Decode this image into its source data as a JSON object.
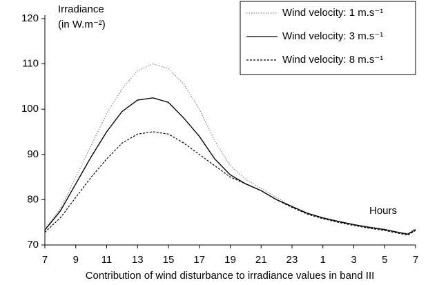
{
  "chart_data": {
    "type": "line",
    "ylabel": [
      "Irradiance",
      "(in W.m⁻²)"
    ],
    "xlabel": "Contribution of wind disturbance to irradiance values in band III",
    "annotation": "Hours",
    "xlim": [
      7,
      31
    ],
    "ylim": [
      70,
      120
    ],
    "yticks": [
      70,
      80,
      90,
      100,
      110,
      120
    ],
    "xticks": [
      7,
      9,
      11,
      13,
      15,
      17,
      19,
      21,
      23,
      {
        "value": 25,
        "label": "1"
      },
      {
        "value": 27,
        "label": "3"
      },
      {
        "value": 29,
        "label": "5"
      },
      {
        "value": 31,
        "label": "7"
      }
    ],
    "legend": "upper right",
    "x": [
      7,
      8,
      9,
      10,
      11,
      12,
      13,
      14,
      15,
      16,
      17,
      18,
      19,
      20,
      21,
      22,
      23,
      24,
      25,
      26,
      27,
      28,
      29,
      30,
      30.5,
      31
    ],
    "series": [
      {
        "name": "Wind velocity: 1 m.s⁻¹",
        "color": "#888888",
        "style": "dotted",
        "values": [
          73.5,
          78,
          85,
          92,
          99,
          104.5,
          108.5,
          110,
          109,
          105.5,
          100,
          93,
          87.5,
          84.5,
          82.5,
          80.5,
          78.5,
          77,
          76,
          75.3,
          74.5,
          74,
          73.5,
          72.8,
          72.5,
          73.7
        ]
      },
      {
        "name": "Wind velocity: 3 m.s⁻¹",
        "color": "#000000",
        "style": "solid",
        "values": [
          73.3,
          77.5,
          83.5,
          89.5,
          95,
          99.5,
          102,
          102.5,
          101.5,
          98,
          94,
          89,
          85.5,
          83.5,
          82,
          80,
          78.5,
          77,
          76,
          75.2,
          74.5,
          73.9,
          73.4,
          72.7,
          72.4,
          73.4
        ]
      },
      {
        "name": "Wind velocity: 8 m.s⁻¹",
        "color": "#000000",
        "style": "dashed",
        "values": [
          72.8,
          76,
          80.5,
          85,
          89,
          92.5,
          94.5,
          95,
          94.5,
          92.5,
          90,
          87.5,
          85,
          83.5,
          82,
          80,
          78.3,
          76.8,
          75.8,
          75,
          74.3,
          73.7,
          73.2,
          72.5,
          72.2,
          73.2
        ]
      }
    ]
  }
}
